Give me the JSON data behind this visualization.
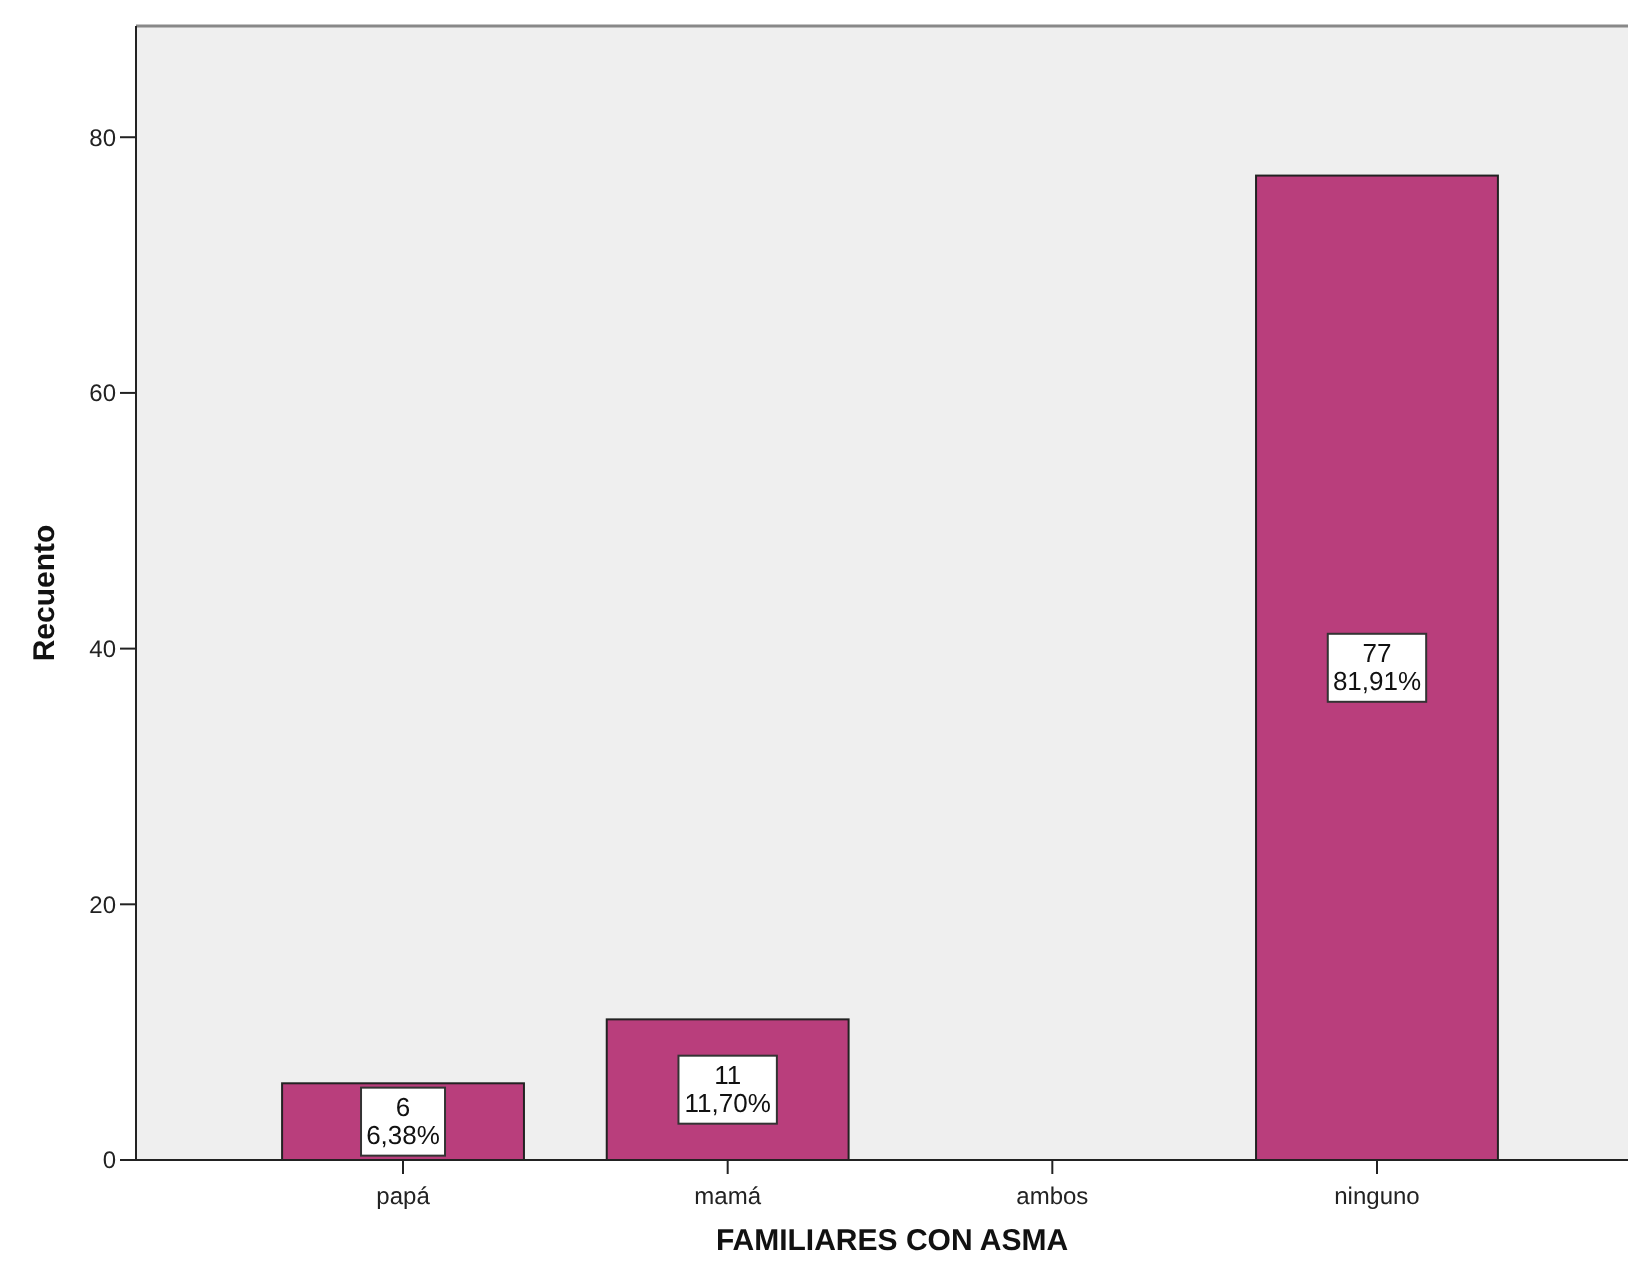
{
  "chart_data": {
    "type": "bar",
    "xlabel": "FAMILIARES CON ASMA",
    "ylabel": "Recuento",
    "categories": [
      "papá",
      "mamá",
      "ambos",
      "ninguno"
    ],
    "values": [
      6,
      11,
      0,
      77
    ],
    "value_labels": [
      "6\n6,38%",
      "11\n11,70%",
      null,
      "77\n81,91%"
    ],
    "color": "#b93e7c",
    "ylim": [
      0,
      88.7
    ],
    "yticks": [
      0,
      20,
      40,
      60,
      80
    ],
    "grid": false
  }
}
